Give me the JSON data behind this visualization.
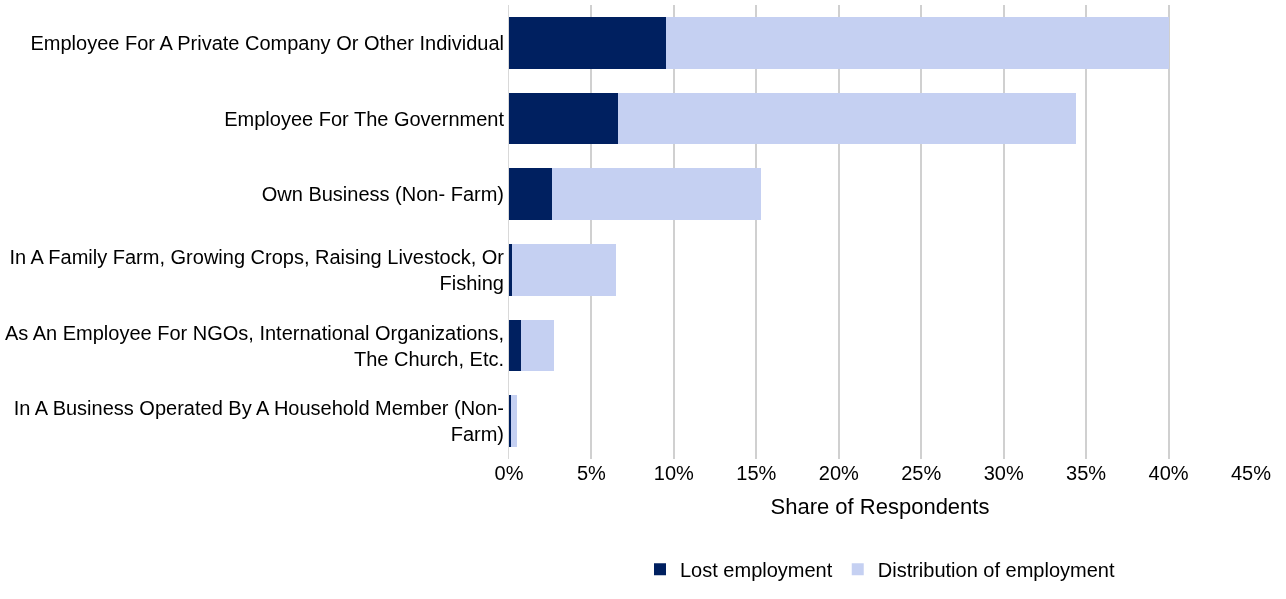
{
  "chart_data": {
    "type": "bar",
    "orientation": "horizontal",
    "stacked": true,
    "xlabel": "Share of Respondents",
    "categories": [
      "Employee For A Private Company Or Other Individual",
      "Employee For The Government",
      "Own Business (Non- Farm)",
      "In A Family Farm, Growing Crops, Raising Livestock, Or Fishing",
      "As An Employee For NGOs, International Organizations, The Church, Etc.",
      "In A Business Operated By A Household Member (Non-Farm)"
    ],
    "series": [
      {
        "name": "Lost employment",
        "color": "#002060",
        "values": [
          9.5,
          6.6,
          2.6,
          0.2,
          0.7,
          0.15
        ]
      },
      {
        "name": "Distribution of employment",
        "color": "#c5d0f2",
        "values": [
          30.5,
          27.8,
          12.7,
          6.3,
          2.0,
          0.35
        ]
      }
    ],
    "xlim": [
      0,
      45
    ],
    "xticks": [
      {
        "value": 0,
        "label": "0%"
      },
      {
        "value": 5,
        "label": "5%"
      },
      {
        "value": 10,
        "label": "10%"
      },
      {
        "value": 15,
        "label": "15%"
      },
      {
        "value": 20,
        "label": "20%"
      },
      {
        "value": 25,
        "label": "25%"
      },
      {
        "value": 30,
        "label": "30%"
      },
      {
        "value": 35,
        "label": "35%"
      },
      {
        "value": 40,
        "label": "40%"
      },
      {
        "value": 45,
        "label": "45%"
      }
    ],
    "grid": "x",
    "legend": "bottom"
  }
}
